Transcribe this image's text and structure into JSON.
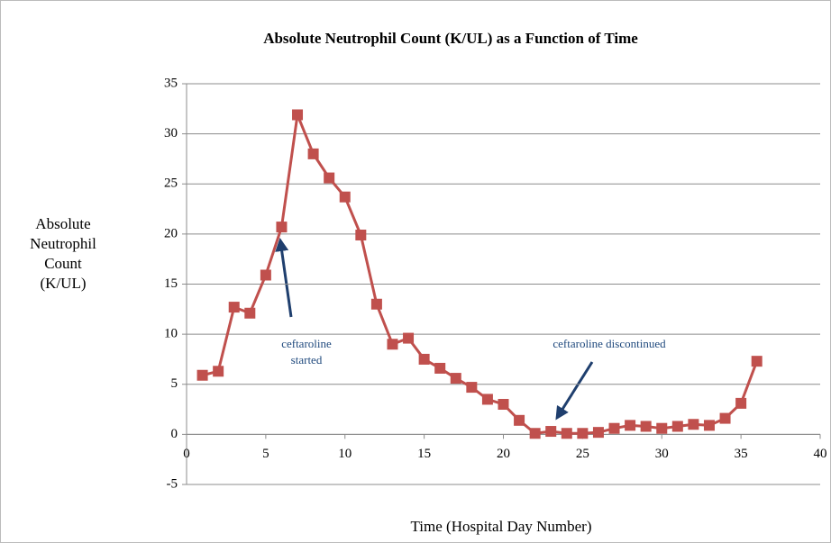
{
  "chart_data": {
    "type": "line",
    "title": "Absolute Neutrophil Count (K/UL) as a Function of Time",
    "x_label": "Time (Hospital Day Number)",
    "y_label": [
      "Absolute",
      "Neutrophil",
      "Count",
      "(K/UL)"
    ],
    "x": [
      1,
      2,
      3,
      4,
      5,
      6,
      7,
      8,
      9,
      10,
      11,
      12,
      13,
      14,
      15,
      16,
      17,
      18,
      19,
      20,
      21,
      22,
      23,
      24,
      25,
      26,
      27,
      28,
      29,
      30,
      31,
      32,
      33,
      34,
      35,
      36
    ],
    "series": [
      {
        "name": "Absolute Neutrophil Count",
        "color": "#c0504d",
        "values": [
          5.9,
          6.3,
          12.7,
          12.1,
          15.9,
          20.7,
          31.9,
          28.0,
          25.6,
          23.7,
          19.9,
          13.0,
          9.0,
          9.6,
          7.5,
          6.6,
          5.6,
          4.7,
          3.5,
          3.0,
          1.4,
          0.1,
          0.3,
          0.1,
          0.1,
          0.2,
          0.6,
          0.9,
          0.8,
          0.6,
          0.8,
          1.0,
          0.9,
          1.6,
          3.1,
          7.3
        ]
      }
    ],
    "xlim": [
      0,
      40
    ],
    "xticks": [
      0,
      5,
      10,
      15,
      20,
      25,
      30,
      35,
      40
    ],
    "ylim": [
      -5,
      35
    ],
    "yticks": [
      -5,
      0,
      5,
      10,
      15,
      20,
      25,
      30,
      35
    ],
    "grid": true,
    "annotations": [
      {
        "text": [
          "ceftaroline",
          "started"
        ]
      },
      {
        "text": [
          "ceftaroline discontinued"
        ]
      }
    ]
  }
}
